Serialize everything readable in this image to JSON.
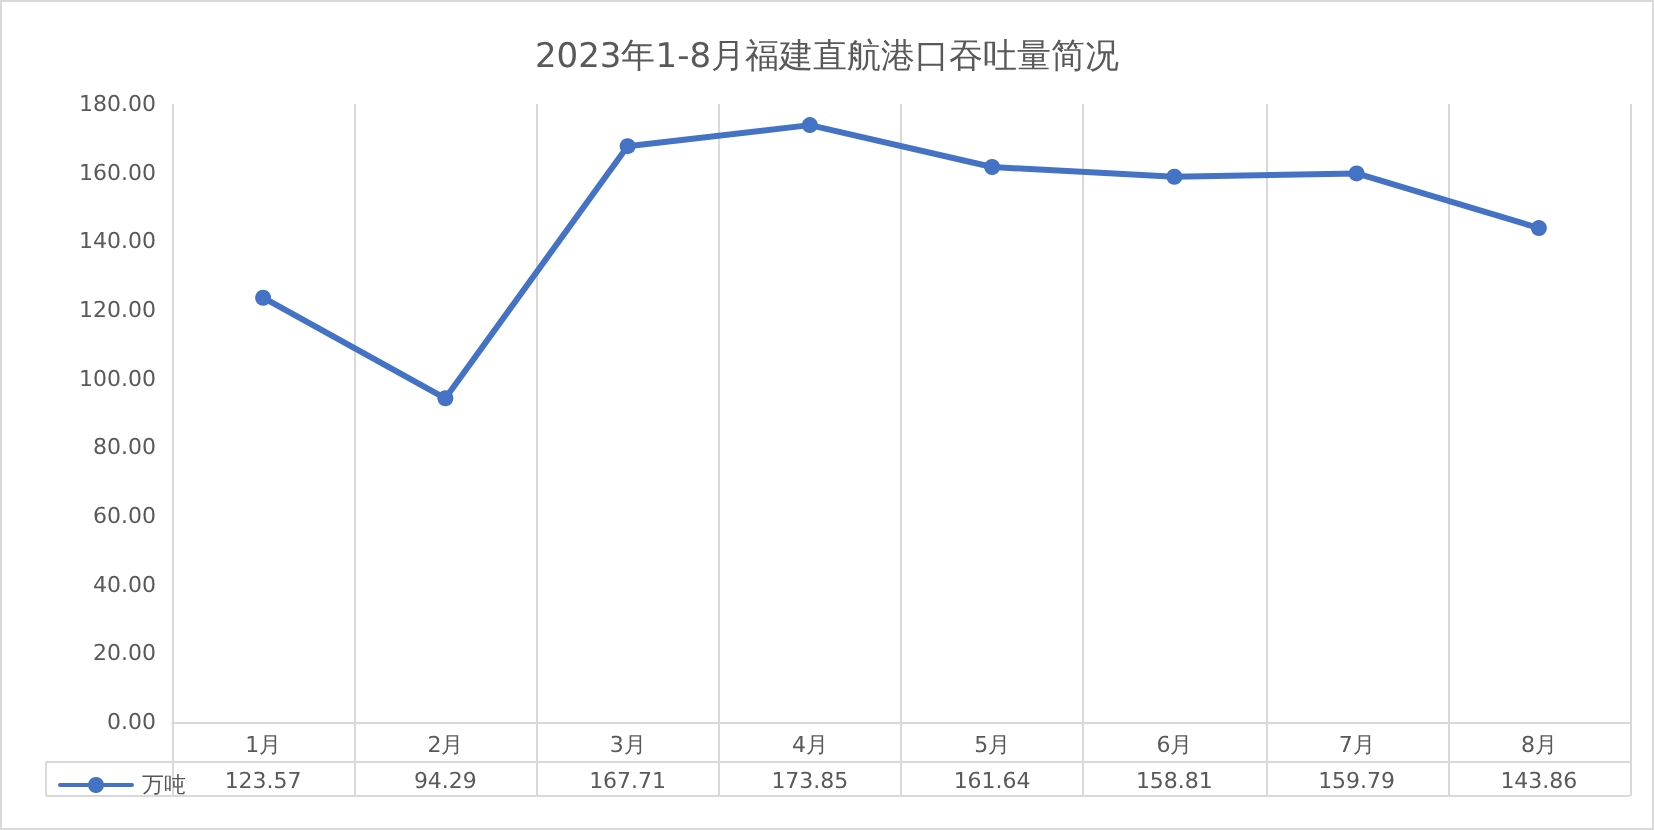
{
  "chart_data": {
    "type": "line",
    "title": "2023年1-8月福建直航港口吞吐量简况",
    "categories": [
      "1月",
      "2月",
      "3月",
      "4月",
      "5月",
      "6月",
      "7月",
      "8月"
    ],
    "series": [
      {
        "name": "万吨",
        "color": "#4472c4",
        "values": [
          123.57,
          94.29,
          167.71,
          173.85,
          161.64,
          158.81,
          159.79,
          143.86
        ]
      }
    ],
    "ylim": [
      0,
      180
    ],
    "yticks": [
      {
        "value": 0,
        "label": "0.00"
      },
      {
        "value": 20,
        "label": "20.00"
      },
      {
        "value": 40,
        "label": "40.00"
      },
      {
        "value": 60,
        "label": "60.00"
      },
      {
        "value": 80,
        "label": "80.00"
      },
      {
        "value": 100,
        "label": "100.00"
      },
      {
        "value": 120,
        "label": "120.00"
      },
      {
        "value": 140,
        "label": "140.00"
      },
      {
        "value": 160,
        "label": "160.00"
      },
      {
        "value": 180,
        "label": "180.00"
      }
    ],
    "grid": "x",
    "legend": "bottom left",
    "marker": "circle",
    "line_style": "solid",
    "data_labels": true
  }
}
